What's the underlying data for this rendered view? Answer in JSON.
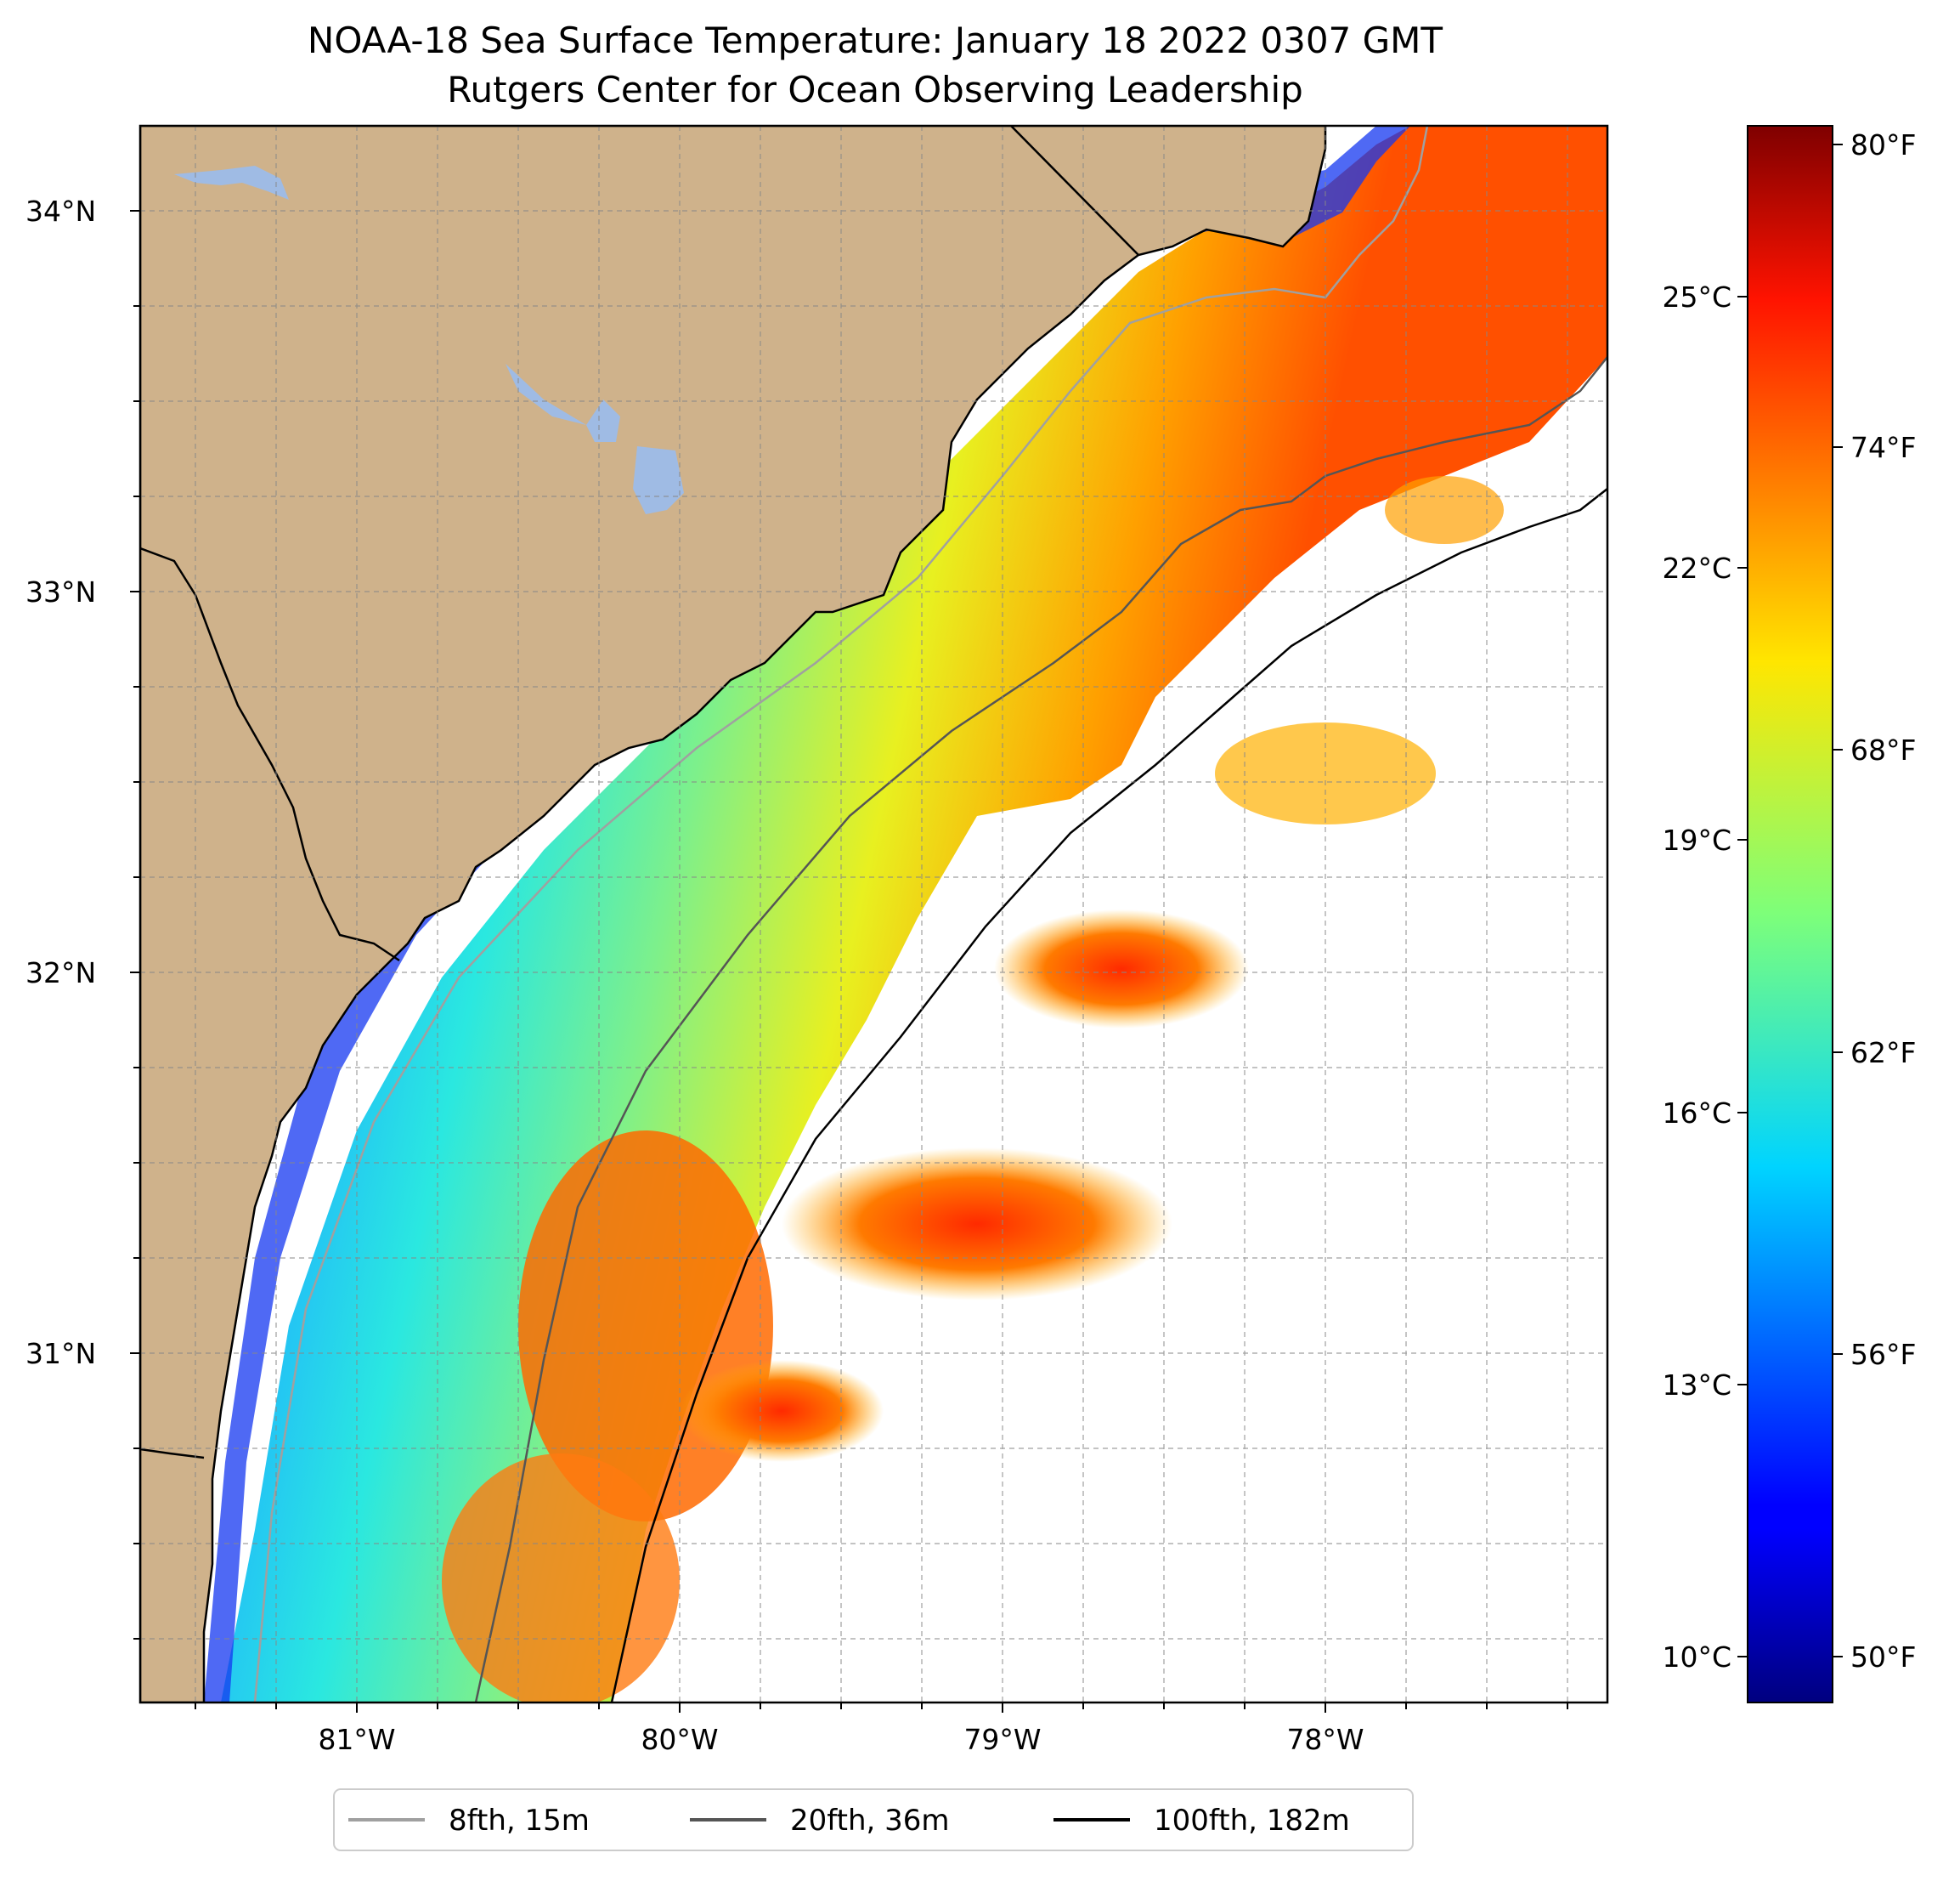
{
  "title": {
    "line1": "NOAA-18 Sea Surface Temperature: January 18 2022 0307 GMT",
    "line2": "Rutgers Center for Ocean Observing Leadership"
  },
  "map": {
    "lon_range": [
      -81.67,
      -77.13
    ],
    "lat_range": [
      30.08,
      34.22
    ],
    "lat_ticks": [
      "34°N",
      "33°N",
      "32°N",
      "31°N"
    ],
    "lon_ticks": [
      "81°W",
      "80°W",
      "79°W",
      "78°W"
    ],
    "gridlines": true,
    "land_color": "#cfb28b",
    "water_body_color": "#9fbbe4"
  },
  "colorbar": {
    "colormap": "jet",
    "celsius_labels": [
      "25°C",
      "22°C",
      "19°C",
      "16°C",
      "13°C",
      "10°C"
    ],
    "fahrenheit_labels": [
      "80°F",
      "74°F",
      "68°F",
      "62°F",
      "56°F",
      "50°F"
    ],
    "range_f": [
      49.3,
      80.6
    ]
  },
  "legend": {
    "placement": "bottom-center",
    "entries": [
      {
        "label": "8fth, 15m",
        "color": "#a0a0a0"
      },
      {
        "label": "20fth, 36m",
        "color": "#555555"
      },
      {
        "label": "100fth, 182m",
        "color": "#000000"
      }
    ]
  }
}
